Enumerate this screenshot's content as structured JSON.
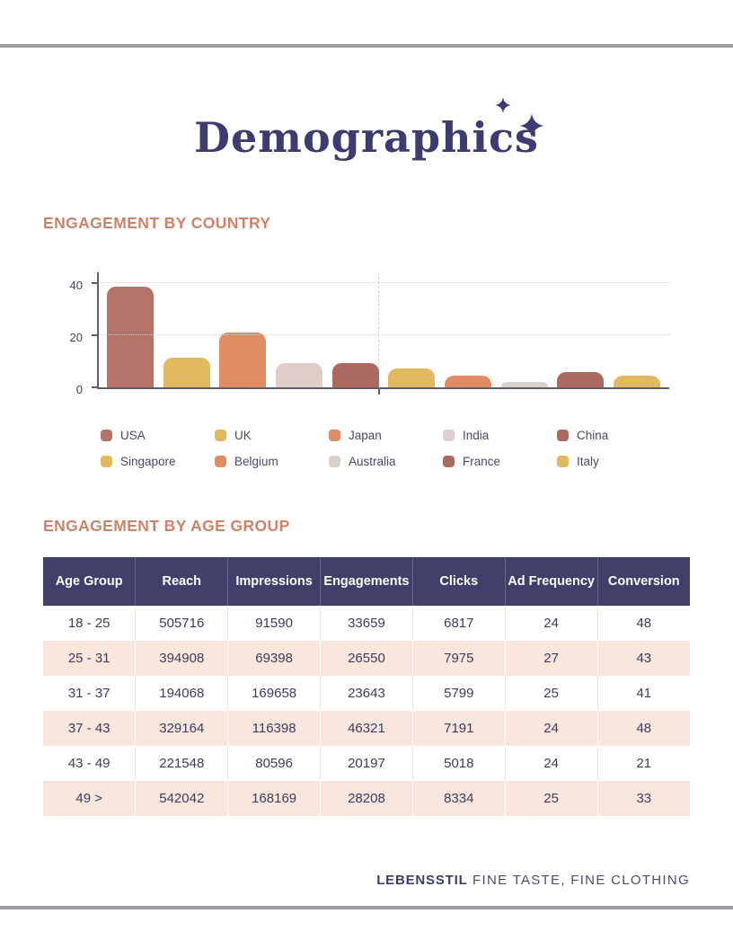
{
  "page": {
    "title": "Demographics"
  },
  "sections": {
    "country_heading": "ENGAGEMENT BY COUNTRY",
    "age_heading": "ENGAGEMENT BY AGE GROUP"
  },
  "chart_data": {
    "type": "bar",
    "title": "Engagement by Country",
    "categories": [
      "USA",
      "UK",
      "Japan",
      "India",
      "China",
      "Singapore",
      "Belgium",
      "Australia",
      "France",
      "Italy"
    ],
    "values": [
      39.5,
      11.5,
      21.5,
      9.5,
      9.5,
      7.5,
      4.5,
      2,
      6,
      4.5
    ],
    "colors": [
      "#b5746a",
      "#e2ba5e",
      "#e08d66",
      "#decdc8",
      "#aa6a5f",
      "#e2ba5e",
      "#e08d66",
      "#d9d0ca",
      "#aa6a5f",
      "#e2ba5e"
    ],
    "xlabel": "",
    "ylabel": "",
    "yticks": [
      0,
      20,
      40
    ],
    "ylim": [
      0,
      45
    ],
    "grid": {
      "horizontal": "dotted lines at 20 and 40",
      "vertical": "dashed line at chart center"
    },
    "legend_position": "bottom"
  },
  "table": {
    "headers": [
      "Age Group",
      "Reach",
      "Impressions",
      "Engagements",
      "Clicks",
      "Ad Frequency",
      "Conversion"
    ],
    "rows": [
      [
        "18 - 25",
        "505716",
        "91590",
        "33659",
        "6817",
        "24",
        "48"
      ],
      [
        "25 - 31",
        "394908",
        "69398",
        "26550",
        "7975",
        "27",
        "43"
      ],
      [
        "31 - 37",
        "194068",
        "169658",
        "23643",
        "5799",
        "25",
        "41"
      ],
      [
        "37 - 43",
        "329164",
        "116398",
        "46321",
        "7191",
        "24",
        "48"
      ],
      [
        "43 - 49",
        "221548",
        "80596",
        "20197",
        "5018",
        "24",
        "21"
      ],
      [
        "49 >",
        "542042",
        "168169",
        "28208",
        "8334",
        "25",
        "33"
      ]
    ]
  },
  "footer": {
    "brand": "LEBENSSTIL",
    "tagline": "FINE TASTE, FINE CLOTHING"
  },
  "colors": {
    "accent_heading": "#cd8269",
    "title_navy": "#3c3c70",
    "table_header_bg": "#3f3f69",
    "table_row_alt_bg": "#f9e7de",
    "body_text": "#3c3c5e",
    "page_rule": "#9b9ba3"
  }
}
